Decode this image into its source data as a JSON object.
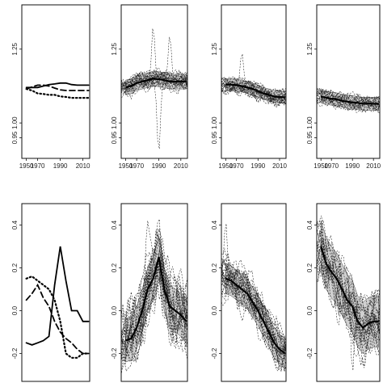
{
  "chart_data": [
    {
      "type": "line",
      "style": "mean-curves",
      "x": [
        1960,
        1965,
        1970,
        1975,
        1980,
        1985,
        1990,
        1995,
        2000,
        2005,
        2010,
        2015
      ],
      "xticks": [
        "1950",
        "1970",
        "1990",
        "2010"
      ],
      "xlim": [
        1956,
        2016
      ],
      "ylim": [
        0.88,
        1.4
      ],
      "yticks": [
        "0.95",
        "1.00",
        "1.25"
      ],
      "ytick_values": [
        0.95,
        1.0,
        1.25
      ],
      "series": [
        {
          "values": [
            1.12,
            1.12,
            1.12,
            1.125,
            1.13,
            1.132,
            1.135,
            1.135,
            1.13,
            1.128,
            1.128,
            1.128
          ],
          "dash": "solid"
        },
        {
          "values": [
            1.115,
            1.122,
            1.128,
            1.128,
            1.125,
            1.118,
            1.112,
            1.11,
            1.11,
            1.11,
            1.11,
            1.11
          ],
          "dash": "dashed"
        },
        {
          "values": [
            1.115,
            1.11,
            1.1,
            1.098,
            1.095,
            1.095,
            1.09,
            1.088,
            1.085,
            1.085,
            1.085,
            1.085
          ],
          "dash": "dotted"
        }
      ]
    },
    {
      "type": "line",
      "style": "spaghetti",
      "x": [
        1960,
        1965,
        1970,
        1975,
        1980,
        1985,
        1990,
        1995,
        2000,
        2005,
        2010,
        2015
      ],
      "xticks": [
        "1950",
        "1970",
        "1990",
        "2010"
      ],
      "xlim": [
        1956,
        2016
      ],
      "ylim": [
        0.88,
        1.4
      ],
      "yticks": [
        "0.95",
        "1.00",
        "1.25"
      ],
      "ytick_values": [
        0.95,
        1.0,
        1.25
      ],
      "mean": [
        1.12,
        1.125,
        1.135,
        1.14,
        1.145,
        1.15,
        1.148,
        1.145,
        1.14,
        1.14,
        1.14,
        1.14
      ],
      "band_halfwidth": 0.025,
      "n_curves": 26,
      "spread": 0.03,
      "spikes": [
        [
          1990,
          0.9
        ],
        [
          1985,
          1.33
        ],
        [
          2000,
          1.3
        ]
      ]
    },
    {
      "type": "line",
      "style": "spaghetti",
      "x": [
        1960,
        1965,
        1970,
        1975,
        1980,
        1985,
        1990,
        1995,
        2000,
        2005,
        2010,
        2015
      ],
      "xticks": [
        "1950",
        "1970",
        "1990",
        "2010"
      ],
      "xlim": [
        1956,
        2016
      ],
      "ylim": [
        0.88,
        1.4
      ],
      "yticks": [
        "0.95",
        "1.00",
        "1.25"
      ],
      "ytick_values": [
        0.95,
        1.0,
        1.25
      ],
      "mean": [
        1.13,
        1.13,
        1.128,
        1.125,
        1.12,
        1.115,
        1.108,
        1.1,
        1.095,
        1.09,
        1.088,
        1.087
      ],
      "band_halfwidth": 0.02,
      "n_curves": 26,
      "spread": 0.025,
      "spikes": [
        [
          1975,
          1.24
        ],
        [
          1990,
          1.07
        ]
      ]
    },
    {
      "type": "line",
      "style": "spaghetti",
      "x": [
        1960,
        1965,
        1970,
        1975,
        1980,
        1985,
        1990,
        1995,
        2000,
        2005,
        2010,
        2015
      ],
      "xticks": [
        "1950",
        "1970",
        "1990",
        "2010"
      ],
      "xlim": [
        1956,
        2016
      ],
      "ylim": [
        0.88,
        1.4
      ],
      "yticks": [
        "0.95",
        "1.00",
        "1.25"
      ],
      "ytick_values": [
        0.95,
        1.0,
        1.25
      ],
      "mean": [
        1.09,
        1.085,
        1.082,
        1.08,
        1.075,
        1.072,
        1.07,
        1.068,
        1.065,
        1.065,
        1.065,
        1.065
      ],
      "band_halfwidth": 0.022,
      "n_curves": 22,
      "spread": 0.025,
      "spikes": [
        [
          1990,
          1.04
        ]
      ]
    },
    {
      "type": "line",
      "style": "mean-curves",
      "x": [
        1960,
        1965,
        1970,
        1975,
        1980,
        1985,
        1990,
        1995,
        2000,
        2005,
        2010,
        2015
      ],
      "xticks": [],
      "xlim": [
        1956,
        2016
      ],
      "ylim": [
        -0.33,
        0.5
      ],
      "yticks": [
        "-0.2",
        "0.0",
        "0.2",
        "0.4"
      ],
      "ytick_values": [
        -0.2,
        0.0,
        0.2,
        0.4
      ],
      "series": [
        {
          "values": [
            -0.15,
            -0.16,
            -0.15,
            -0.14,
            -0.12,
            0.12,
            0.3,
            0.14,
            0.0,
            0.0,
            -0.05,
            -0.05
          ],
          "dash": "solid"
        },
        {
          "values": [
            0.05,
            0.08,
            0.12,
            0.06,
            0.02,
            -0.05,
            -0.1,
            -0.13,
            -0.15,
            -0.18,
            -0.2,
            -0.2
          ],
          "dash": "dashed"
        },
        {
          "values": [
            0.15,
            0.16,
            0.14,
            0.12,
            0.1,
            0.05,
            -0.05,
            -0.2,
            -0.22,
            -0.22,
            -0.2,
            -0.2
          ],
          "dash": "dotted"
        }
      ]
    },
    {
      "type": "line",
      "style": "spaghetti",
      "x": [
        1960,
        1965,
        1970,
        1975,
        1980,
        1985,
        1990,
        1995,
        2000,
        2005,
        2010,
        2015
      ],
      "xticks": [],
      "xlim": [
        1956,
        2016
      ],
      "ylim": [
        -0.33,
        0.5
      ],
      "yticks": [
        "-0.2",
        "0.0",
        "0.2",
        "0.4"
      ],
      "ytick_values": [
        -0.2,
        0.0,
        0.2,
        0.4
      ],
      "mean": [
        -0.14,
        -0.13,
        -0.08,
        0.0,
        0.1,
        0.15,
        0.25,
        0.1,
        0.02,
        0.0,
        -0.02,
        -0.05
      ],
      "band_halfwidth": 0.1,
      "n_curves": 26,
      "spread": 0.15,
      "spikes": [
        [
          1980,
          0.42
        ],
        [
          1990,
          0.38
        ]
      ]
    },
    {
      "type": "line",
      "style": "spaghetti",
      "x": [
        1960,
        1965,
        1970,
        1975,
        1980,
        1985,
        1990,
        1995,
        2000,
        2005,
        2010,
        2015
      ],
      "xticks": [],
      "xlim": [
        1956,
        2016
      ],
      "ylim": [
        -0.33,
        0.5
      ],
      "yticks": [
        "-0.2",
        "0.0",
        "0.2",
        "0.4"
      ],
      "ytick_values": [
        -0.2,
        0.0,
        0.2,
        0.4
      ],
      "mean": [
        0.15,
        0.14,
        0.12,
        0.1,
        0.08,
        0.04,
        0.0,
        -0.05,
        -0.1,
        -0.15,
        -0.18,
        -0.2
      ],
      "band_halfwidth": 0.07,
      "n_curves": 26,
      "spread": 0.1,
      "spikes": [
        [
          1960,
          0.42
        ]
      ]
    },
    {
      "type": "line",
      "style": "spaghetti",
      "x": [
        1960,
        1965,
        1970,
        1975,
        1980,
        1985,
        1990,
        1995,
        2000,
        2005,
        2010,
        2015
      ],
      "xticks": [],
      "xlim": [
        1956,
        2016
      ],
      "ylim": [
        -0.33,
        0.5
      ],
      "yticks": [
        "-0.2",
        "0.0",
        "0.2",
        "0.4"
      ],
      "ytick_values": [
        -0.2,
        0.0,
        0.2,
        0.4
      ],
      "mean": [
        0.3,
        0.22,
        0.18,
        0.15,
        0.1,
        0.05,
        0.02,
        -0.05,
        -0.08,
        -0.06,
        -0.05,
        -0.05
      ],
      "band_halfwidth": 0.12,
      "n_curves": 22,
      "spread": 0.13,
      "spikes": [
        [
          1960,
          0.45
        ],
        [
          1990,
          -0.3
        ]
      ]
    }
  ]
}
